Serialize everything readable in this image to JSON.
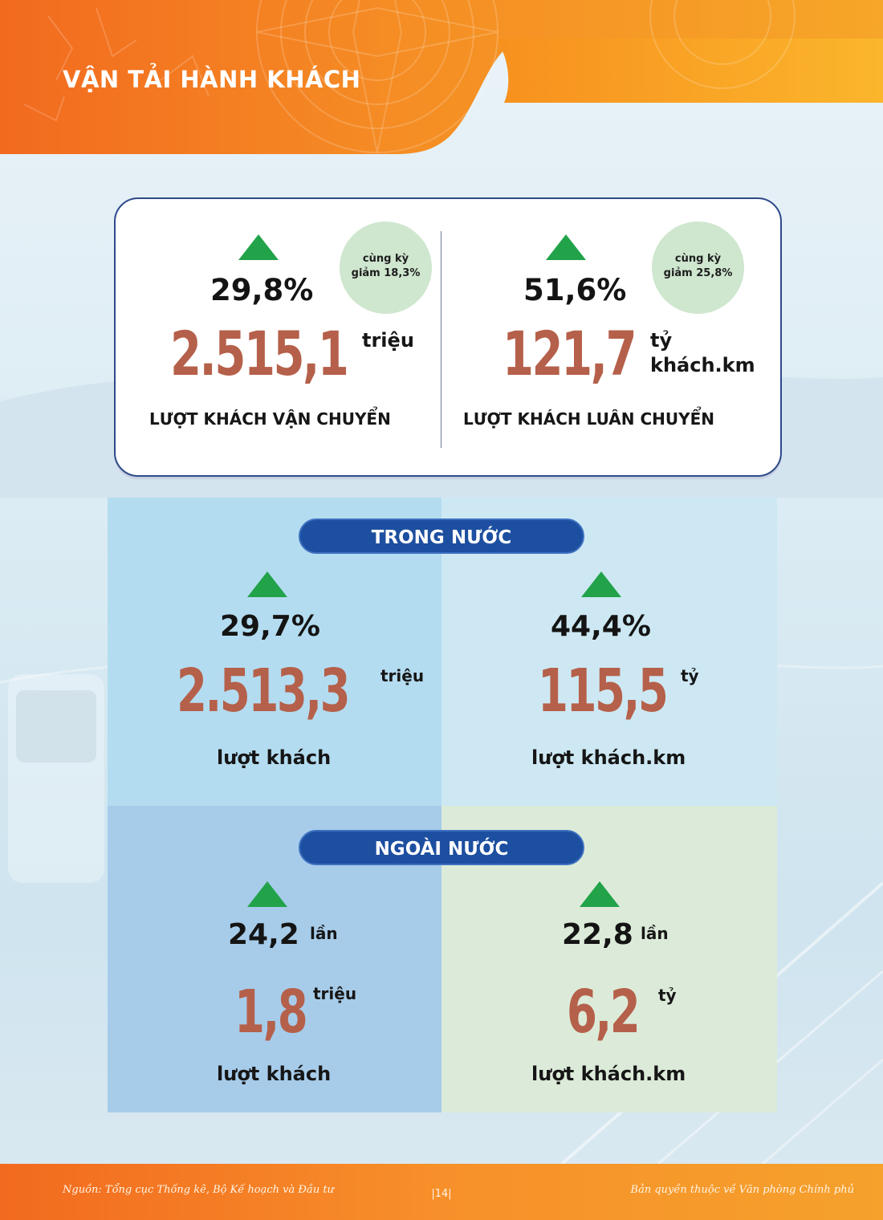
{
  "header": {
    "title": "VẬN TẢI HÀNH KHÁCH"
  },
  "summary": {
    "left": {
      "change": "29,8%",
      "comparison_line1": "cùng  kỳ",
      "comparison_line2": "giảm 18,3%",
      "value": "2.515,1",
      "unit": "triệu",
      "caption": "LƯỢT KHÁCH VẬN CHUYỂN"
    },
    "right": {
      "change": "51,6%",
      "comparison_line1": "cùng kỳ",
      "comparison_line2": "giảm 25,8%",
      "value": "121,7",
      "unit_line1": "tỷ",
      "unit_line2": "khách.km",
      "caption": "LƯỢT KHÁCH LUÂN CHUYỂN"
    }
  },
  "domestic": {
    "label": "TRONG NƯỚC",
    "left": {
      "change": "29,7%",
      "value": "2.513,3",
      "unit": "triệu",
      "caption": "lượt khách"
    },
    "right": {
      "change": "44,4%",
      "value": "115,5",
      "unit": "tỷ",
      "caption": "lượt khách.km"
    }
  },
  "international": {
    "label": "NGOÀI NƯỚC",
    "left": {
      "change": "24,2",
      "change_unit": "lần",
      "value": "1,8",
      "unit": "triệu",
      "caption": "lượt khách"
    },
    "right": {
      "change": "22,8",
      "change_unit": "lần",
      "value": "6,2",
      "unit": "tỷ",
      "caption": "lượt khách.km"
    }
  },
  "footer": {
    "source": "Nguồn: Tổng cục Thống kê, Bộ Kế hoạch và Đầu tư",
    "page": "|14|",
    "copyright": "Bản quyền thuộc về Văn phòng Chính phủ"
  },
  "colors": {
    "accent_orange": "#f47b20",
    "value_brown": "#b5604a",
    "up_arrow_green": "#22a34a",
    "pill_blue": "#1d4fa0"
  },
  "icons": {
    "increase": "up-triangle-icon"
  }
}
